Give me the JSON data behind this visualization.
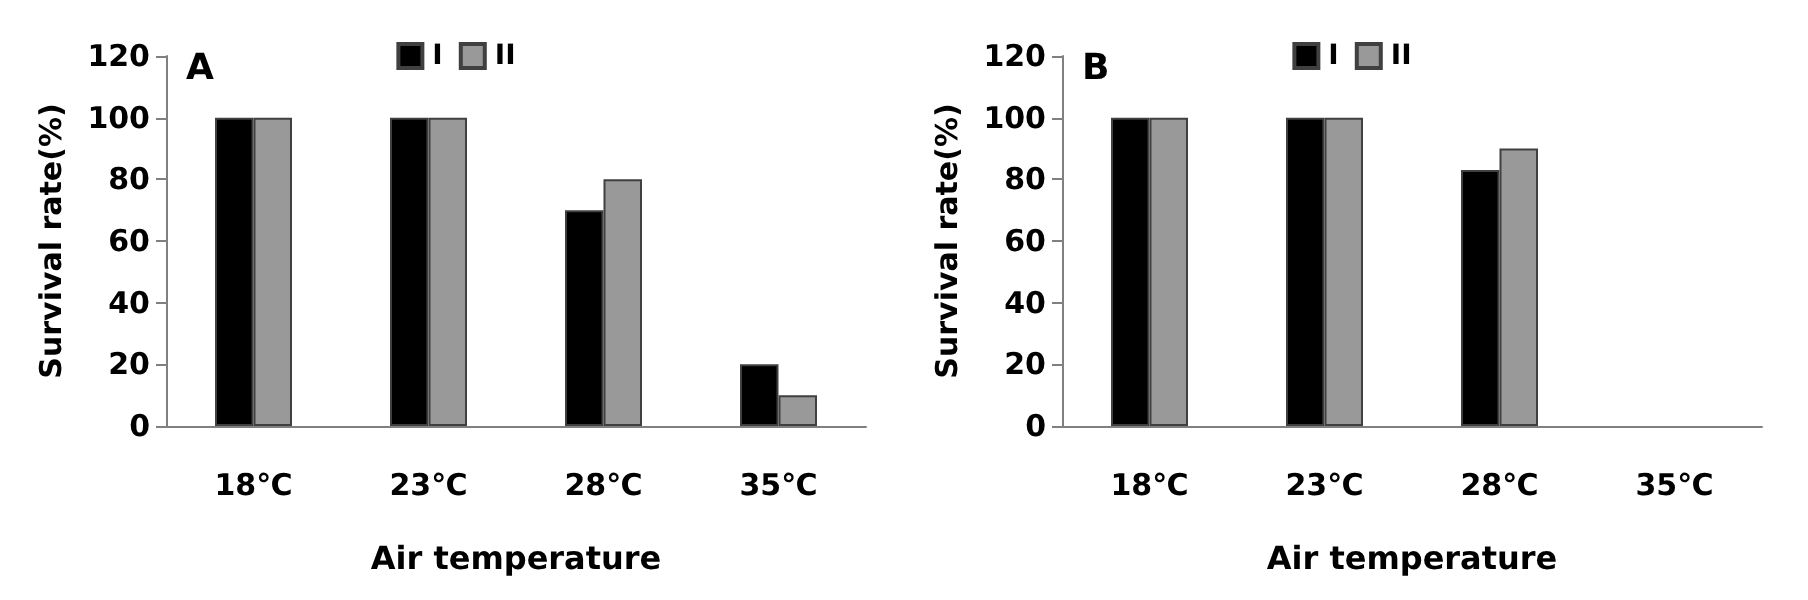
{
  "chart_data": [
    {
      "type": "bar",
      "title": "A",
      "xlabel": "Air temperature",
      "ylabel": "Survival rate(%)",
      "categories": [
        "18℃",
        "23℃",
        "28℃",
        "35℃"
      ],
      "series": [
        {
          "name": "I",
          "color": "#000000",
          "values": [
            100,
            100,
            70,
            20
          ]
        },
        {
          "name": "II",
          "color": "#999999",
          "values": [
            100,
            100,
            80,
            10
          ]
        }
      ],
      "ylim": [
        0,
        120
      ],
      "yticks": [
        0,
        20,
        40,
        60,
        80,
        100,
        120
      ],
      "grid": false,
      "legend": "top"
    },
    {
      "type": "bar",
      "title": "B",
      "xlabel": "Air temperature",
      "ylabel": "Survival rate(%)",
      "categories": [
        "18℃",
        "23℃",
        "28℃",
        "35℃"
      ],
      "series": [
        {
          "name": "I",
          "color": "#000000",
          "values": [
            100,
            100,
            83,
            0
          ]
        },
        {
          "name": "II",
          "color": "#999999",
          "values": [
            100,
            100,
            90,
            0
          ]
        }
      ],
      "ylim": [
        0,
        120
      ],
      "yticks": [
        0,
        20,
        40,
        60,
        80,
        100,
        120
      ],
      "grid": false,
      "legend": "top"
    }
  ]
}
